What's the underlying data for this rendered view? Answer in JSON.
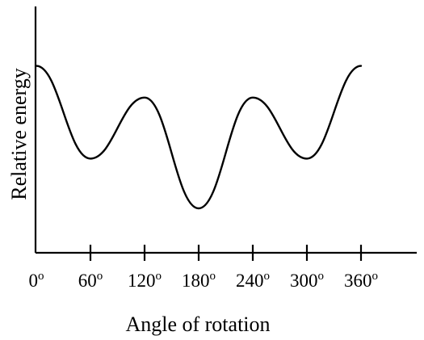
{
  "chart_data": {
    "type": "line",
    "title": "",
    "xlabel": "Angle of rotation",
    "ylabel": "Relative energy",
    "xlim": [
      0,
      360
    ],
    "ylim": [
      0,
      1
    ],
    "grid": false,
    "legend": "none",
    "x_tick_values": [
      0,
      60,
      120,
      180,
      240,
      300,
      360
    ],
    "x_tick_labels": [
      "0",
      "60",
      "120",
      "180",
      "240",
      "300",
      "360"
    ],
    "x_tick_unit": "o",
    "series": [
      {
        "x": [
          0,
          60,
          120,
          180,
          240,
          300,
          360
        ],
        "y": [
          0.78,
          0.37,
          0.64,
          0.15,
          0.64,
          0.37,
          0.78
        ]
      }
    ]
  }
}
